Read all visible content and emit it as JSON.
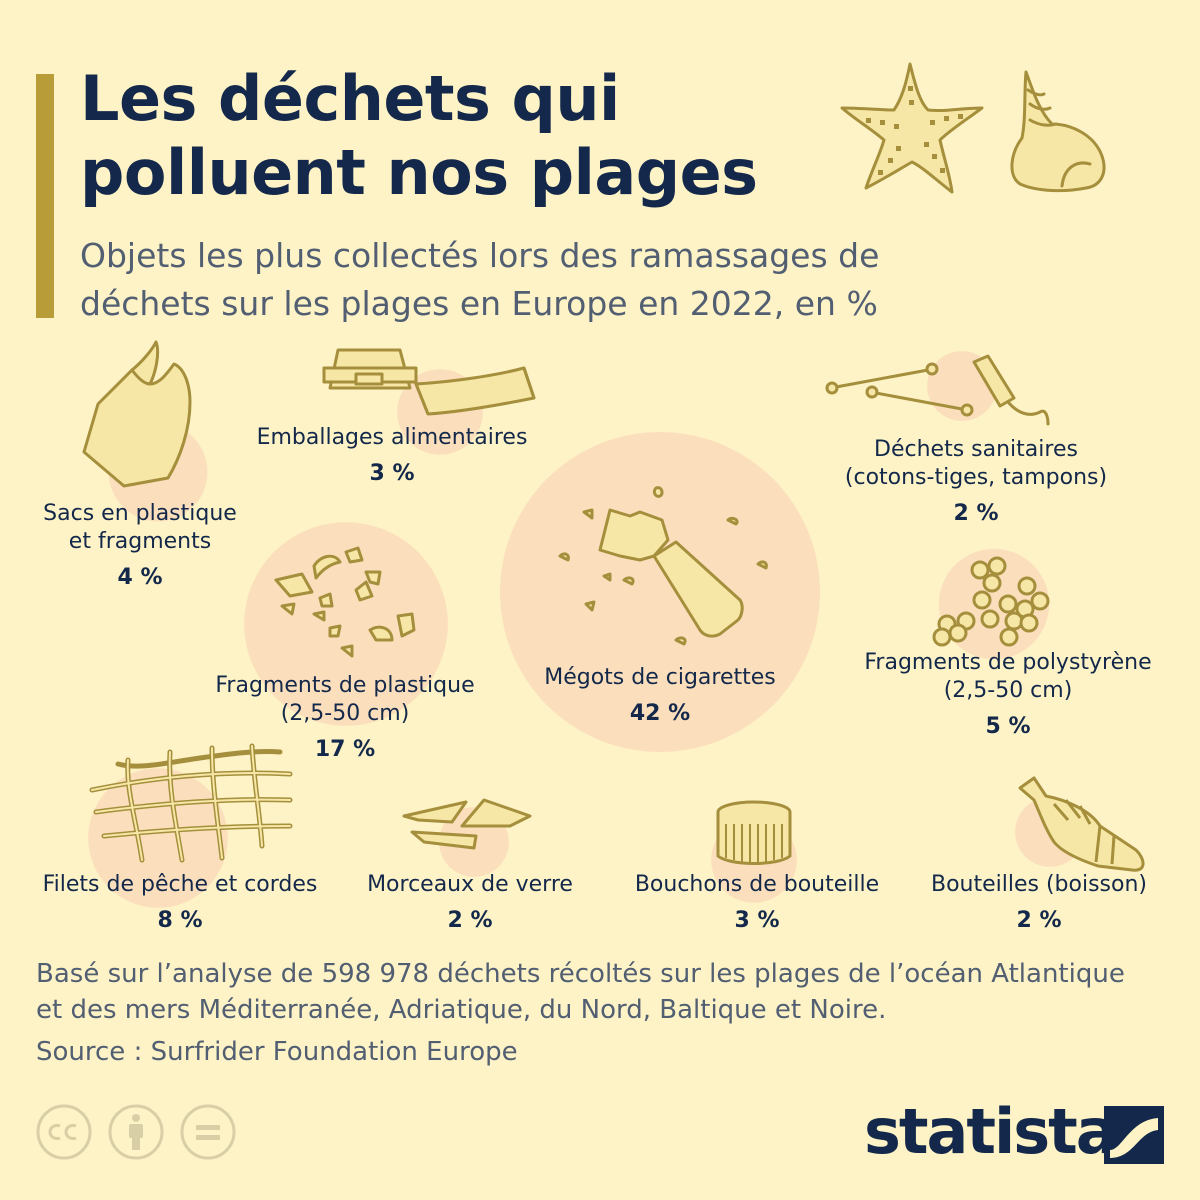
{
  "title": "Les déchets qui polluent nos plages",
  "subtitle": "Objets les plus collectés lors des ramassages de déchets sur les plages en Europe en 2022, en %",
  "chart_data": {
    "type": "bubble",
    "unit": "%",
    "items": [
      {
        "label": "Sacs en plastique et fragments",
        "value": 4,
        "value_label": "4 %",
        "icon": "plastic-bag-icon"
      },
      {
        "label": "Emballages alimentaires",
        "value": 3,
        "value_label": "3 %",
        "icon": "food-packaging-icon"
      },
      {
        "label": "Déchets sanitaires (cotons-tiges, tampons)",
        "value": 2,
        "value_label": "2 %",
        "icon": "cotton-swab-icon"
      },
      {
        "label": "Fragments de plastique (2,5-50 cm)",
        "value": 17,
        "value_label": "17 %",
        "icon": "plastic-fragments-icon"
      },
      {
        "label": "Mégots de cigarettes",
        "value": 42,
        "value_label": "42 %",
        "icon": "cigarette-butt-icon"
      },
      {
        "label": "Fragments de polystyrène (2,5-50 cm)",
        "value": 5,
        "value_label": "5 %",
        "icon": "polystyrene-icon"
      },
      {
        "label": "Filets de pêche et cordes",
        "value": 8,
        "value_label": "8 %",
        "icon": "fishing-net-icon"
      },
      {
        "label": "Morceaux de verre",
        "value": 2,
        "value_label": "2 %",
        "icon": "glass-shards-icon"
      },
      {
        "label": "Bouchons de bouteille",
        "value": 3,
        "value_label": "3 %",
        "icon": "bottle-cap-icon"
      },
      {
        "label": "Bouteilles (boisson)",
        "value": 2,
        "value_label": "2 %",
        "icon": "bottle-icon"
      }
    ]
  },
  "note": "Basé sur l’analyse de 598 978 déchets récoltés sur les plages de l’océan Atlantique et des mers Méditerranée, Adriatique, du Nord, Baltique et Noire.",
  "source": "Source : Surfrider Foundation Europe",
  "brand": "statista",
  "colors": {
    "background": "#fdf3c6",
    "bubble": "#fbdfbc",
    "accent": "#b89c38",
    "text": "#13284a",
    "muted": "#525e72",
    "icon_fill": "#f6e7a6",
    "icon_stroke": "#a58f3c"
  }
}
